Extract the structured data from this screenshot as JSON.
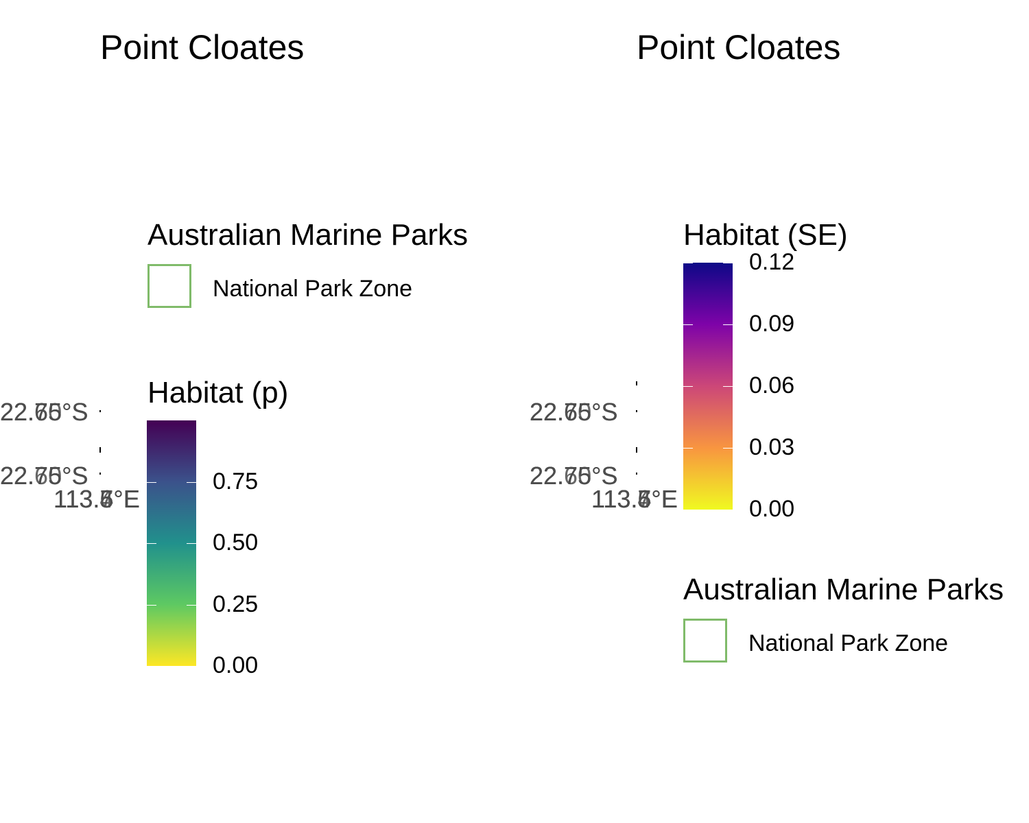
{
  "panels": [
    {
      "title": "Point Cloates",
      "lat_labels": [
        "22.75°S",
        "22.60°S",
        "22.65°S",
        "22.75°S",
        "22.70°S",
        "22.65°S"
      ],
      "lon_labels": [
        "113.5°E",
        "113.6°E",
        "113.4°E",
        "113.7°E"
      ],
      "amp_legend": {
        "title": "Australian Marine Parks",
        "key_label": "National Park Zone",
        "key_color": "#80bb6a"
      },
      "colorbar": {
        "title": "Habitat (p)",
        "ticks": [
          "0.75",
          "0.50",
          "0.25",
          "0.00"
        ],
        "tick_values": [
          0.75,
          0.5,
          0.25,
          0.0
        ],
        "range": [
          0.0,
          1.0
        ],
        "palette": "viridis",
        "colors": [
          "#440154",
          "#3b528b",
          "#21918c",
          "#5ec962",
          "#fde725"
        ]
      }
    },
    {
      "title": "Point Cloates",
      "lat_labels": [
        "22.75°S",
        "22.60°S",
        "22.65°S",
        "22.75°S",
        "22.70°S",
        "22.65°S"
      ],
      "lon_labels": [
        "113.5°E",
        "113.6°E",
        "113.4°E",
        "113.7°E"
      ],
      "amp_legend": {
        "title": "Australian Marine Parks",
        "key_label": "National Park Zone",
        "key_color": "#80bb6a"
      },
      "colorbar": {
        "title": "Habitat (SE)",
        "ticks": [
          "0.12",
          "0.09",
          "0.06",
          "0.03",
          "0.00"
        ],
        "tick_values": [
          0.12,
          0.09,
          0.06,
          0.03,
          0.0
        ],
        "range": [
          0.0,
          0.12
        ],
        "palette": "plasma",
        "colors": [
          "#0d0887",
          "#7e03a8",
          "#cc4778",
          "#f89540",
          "#f0f921"
        ]
      }
    }
  ]
}
